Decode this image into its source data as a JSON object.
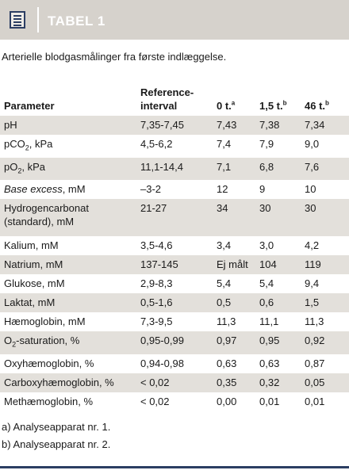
{
  "header": {
    "label": "TABEL 1",
    "icon": "document-list-icon",
    "colors": {
      "bar": "#d6d2cc",
      "icon": "#2c3e63",
      "label": "#ffffff"
    }
  },
  "caption": "Arterielle blodgasmålinger fra første indlæggelse.",
  "table": {
    "headers": {
      "parameter": "Parameter",
      "reference_line1": "Reference-",
      "reference_line2": "interval",
      "t0": "0 t.",
      "t0_sup": "a",
      "t1": "1,5 t.",
      "t1_sup": "b",
      "t2": "46 t.",
      "t2_sup": "b"
    },
    "rows": [
      {
        "param": "pH",
        "ref": "7,35-7,45",
        "t0": "7,43",
        "t1": "7,38",
        "t2": "7,34"
      },
      {
        "param_pre": "pCO",
        "param_sub": "2",
        "param_post": ", kPa",
        "ref": "4,5-6,2",
        "t0": "7,4",
        "t1": "7,9",
        "t2": "9,0"
      },
      {
        "param_pre": "pO",
        "param_sub": "2",
        "param_post": ", kPa",
        "ref": "11,1-14,4",
        "t0": "7,1",
        "t1": "6,8",
        "t2": "7,6"
      },
      {
        "param_italic": "Base excess",
        "param_post": ", mM",
        "ref": "–3-2",
        "t0": "12",
        "t1": "9",
        "t2": "10"
      },
      {
        "param_line1": "Hydrogencarbonat",
        "param_line2": "(standard), mM",
        "ref": "21-27",
        "t0": "34",
        "t1": "30",
        "t2": "30"
      },
      {
        "param": "Kalium, mM",
        "ref": "3,5-4,6",
        "t0": "3,4",
        "t1": "3,0",
        "t2": "4,2"
      },
      {
        "param": "Natrium, mM",
        "ref": "137-145",
        "t0": "Ej målt",
        "t1": "104",
        "t2": "119"
      },
      {
        "param": "Glukose, mM",
        "ref": "2,9-8,3",
        "t0": "5,4",
        "t1": "5,4",
        "t2": "9,4"
      },
      {
        "param": "Laktat, mM",
        "ref": "0,5-1,6",
        "t0": "0,5",
        "t1": "0,6",
        "t2": "1,5"
      },
      {
        "param": "Hæmoglobin, mM",
        "ref": "7,3-9,5",
        "t0": "11,3",
        "t1": "11,1",
        "t2": "11,3"
      },
      {
        "param_pre": "O",
        "param_sub": "2",
        "param_post": "-saturation, %",
        "ref": "0,95-0,99",
        "t0": "0,97",
        "t1": "0,95",
        "t2": "0,92"
      },
      {
        "param": "Oxyhæmoglobin, %",
        "ref": "0,94-0,98",
        "t0": "0,63",
        "t1": "0,63",
        "t2": "0,87"
      },
      {
        "param": "Carboxyhæmoglobin, %",
        "ref": "< 0,02",
        "t0": "0,35",
        "t1": "0,32",
        "t2": "0,05"
      },
      {
        "param": "Methæmoglobin, %",
        "ref": "< 0,02",
        "t0": "0,00",
        "t1": "0,01",
        "t2": "0,01"
      }
    ],
    "colors": {
      "stripe": "#e3e0db"
    }
  },
  "footnotes": [
    "a) Analyseapparat nr. 1.",
    "b) Analyseapparat nr. 2."
  ]
}
